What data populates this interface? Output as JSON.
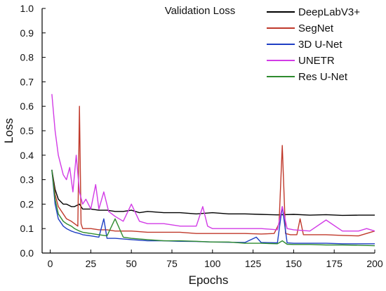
{
  "chart_data": {
    "type": "line",
    "title": "Validation Loss",
    "xlabel": "Epochs",
    "ylabel": "Loss",
    "xlim": [
      -5,
      200
    ],
    "ylim": [
      0,
      1.0
    ],
    "x_ticks": [
      0,
      25,
      50,
      75,
      100,
      125,
      150,
      175,
      200
    ],
    "y_ticks": [
      0.0,
      0.1,
      0.2,
      0.3,
      0.4,
      0.5,
      0.6,
      0.7,
      0.8,
      0.9,
      1.0
    ],
    "grid": false,
    "legend_position": "top-right",
    "series": [
      {
        "name": "DeepLabV3+",
        "color": "#000000",
        "x": [
          1,
          3,
          5,
          8,
          10,
          13,
          15,
          18,
          20,
          25,
          30,
          35,
          40,
          45,
          50,
          55,
          60,
          70,
          80,
          90,
          100,
          110,
          120,
          130,
          140,
          150,
          160,
          170,
          180,
          190,
          200
        ],
        "y": [
          0.34,
          0.26,
          0.22,
          0.2,
          0.2,
          0.19,
          0.19,
          0.2,
          0.18,
          0.18,
          0.175,
          0.175,
          0.17,
          0.17,
          0.175,
          0.165,
          0.17,
          0.165,
          0.165,
          0.16,
          0.165,
          0.16,
          0.16,
          0.158,
          0.156,
          0.158,
          0.155,
          0.157,
          0.154,
          0.155,
          0.155
        ]
      },
      {
        "name": "SegNet",
        "color": "#c0392b",
        "x": [
          1,
          3,
          5,
          8,
          10,
          13,
          15,
          17,
          18,
          19,
          20,
          25,
          30,
          35,
          40,
          45,
          50,
          60,
          70,
          80,
          90,
          100,
          110,
          120,
          130,
          138,
          141,
          143,
          145,
          148,
          152,
          154,
          156,
          160,
          170,
          180,
          190,
          200
        ],
        "y": [
          0.34,
          0.24,
          0.19,
          0.16,
          0.14,
          0.13,
          0.12,
          0.11,
          0.6,
          0.12,
          0.1,
          0.1,
          0.095,
          0.095,
          0.09,
          0.09,
          0.09,
          0.085,
          0.085,
          0.085,
          0.08,
          0.08,
          0.08,
          0.08,
          0.078,
          0.08,
          0.12,
          0.44,
          0.08,
          0.075,
          0.075,
          0.14,
          0.075,
          0.075,
          0.075,
          0.072,
          0.07,
          0.09
        ]
      },
      {
        "name": "3D U-Net",
        "color": "#1f3fc4",
        "x": [
          1,
          3,
          5,
          8,
          10,
          13,
          15,
          18,
          20,
          25,
          30,
          33,
          35,
          40,
          50,
          60,
          70,
          80,
          90,
          100,
          110,
          120,
          127,
          130,
          140,
          143,
          146,
          150,
          160,
          170,
          180,
          190,
          200
        ],
        "y": [
          0.34,
          0.2,
          0.14,
          0.11,
          0.1,
          0.09,
          0.085,
          0.08,
          0.075,
          0.07,
          0.065,
          0.14,
          0.06,
          0.06,
          0.055,
          0.05,
          0.05,
          0.048,
          0.047,
          0.045,
          0.044,
          0.043,
          0.065,
          0.043,
          0.042,
          0.19,
          0.042,
          0.04,
          0.04,
          0.04,
          0.038,
          0.038,
          0.038
        ]
      },
      {
        "name": "UNETR",
        "color": "#d23be6",
        "x": [
          1,
          3,
          5,
          8,
          10,
          12,
          14,
          16,
          18,
          20,
          22,
          25,
          28,
          30,
          33,
          36,
          40,
          45,
          50,
          55,
          60,
          70,
          80,
          90,
          94,
          97,
          100,
          110,
          120,
          130,
          140,
          143,
          146,
          150,
          160,
          170,
          180,
          190,
          195,
          200
        ],
        "y": [
          0.65,
          0.5,
          0.4,
          0.32,
          0.3,
          0.35,
          0.25,
          0.4,
          0.25,
          0.2,
          0.22,
          0.18,
          0.28,
          0.18,
          0.25,
          0.17,
          0.15,
          0.13,
          0.2,
          0.13,
          0.12,
          0.12,
          0.11,
          0.11,
          0.19,
          0.11,
          0.1,
          0.1,
          0.1,
          0.1,
          0.095,
          0.19,
          0.1,
          0.095,
          0.09,
          0.135,
          0.09,
          0.09,
          0.1,
          0.09
        ]
      },
      {
        "name": "Res U-Net",
        "color": "#2e8b2e",
        "x": [
          1,
          3,
          5,
          8,
          10,
          13,
          15,
          18,
          20,
          25,
          30,
          35,
          40,
          45,
          50,
          60,
          70,
          80,
          90,
          100,
          110,
          120,
          130,
          140,
          143,
          146,
          150,
          160,
          170,
          180,
          190,
          200
        ],
        "y": [
          0.34,
          0.22,
          0.16,
          0.13,
          0.12,
          0.11,
          0.1,
          0.09,
          0.085,
          0.08,
          0.075,
          0.07,
          0.14,
          0.065,
          0.06,
          0.055,
          0.05,
          0.05,
          0.048,
          0.045,
          0.045,
          0.04,
          0.04,
          0.038,
          0.05,
          0.036,
          0.035,
          0.035,
          0.033,
          0.033,
          0.032,
          0.03
        ]
      }
    ]
  }
}
